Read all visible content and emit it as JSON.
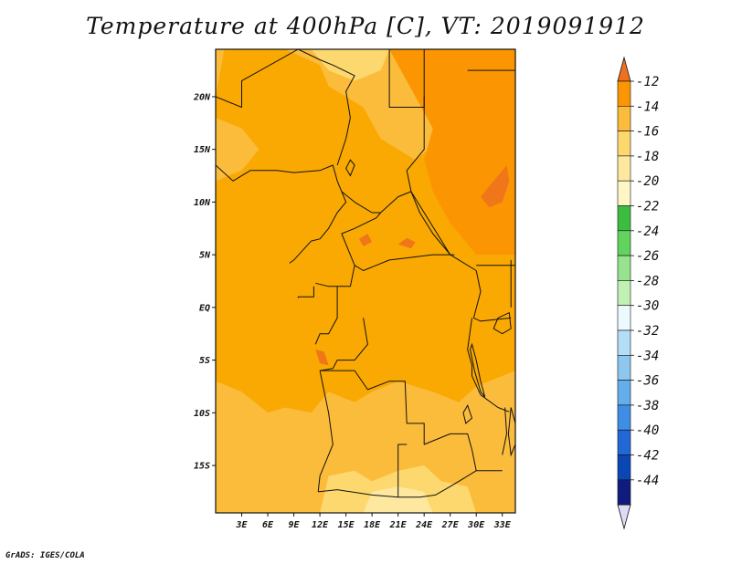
{
  "title": "Temperature at 400hPa [C], VT: 2019091912",
  "credit": "GrADS: IGES/COLA",
  "map": {
    "lon_range": [
      0,
      34.5
    ],
    "lat_range": [
      -19.5,
      24.5
    ],
    "background_color": "#f9a902",
    "lat_ticks": [
      {
        "value": 20,
        "label": "20N"
      },
      {
        "value": 15,
        "label": "15N"
      },
      {
        "value": 10,
        "label": "10N"
      },
      {
        "value": 5,
        "label": "5N"
      },
      {
        "value": 0,
        "label": "EQ"
      },
      {
        "value": -5,
        "label": "5S"
      },
      {
        "value": -10,
        "label": "10S"
      },
      {
        "value": -15,
        "label": "15S"
      }
    ],
    "lon_ticks": [
      {
        "value": 3,
        "label": "3E"
      },
      {
        "value": 6,
        "label": "6E"
      },
      {
        "value": 9,
        "label": "9E"
      },
      {
        "value": 12,
        "label": "12E"
      },
      {
        "value": 15,
        "label": "15E"
      },
      {
        "value": 18,
        "label": "18E"
      },
      {
        "value": 21,
        "label": "21E"
      },
      {
        "value": 24,
        "label": "24E"
      },
      {
        "value": 27,
        "label": "27E"
      },
      {
        "value": 30,
        "label": "30E"
      },
      {
        "value": 33,
        "label": "33E"
      }
    ],
    "regions": [
      {
        "name": "band-16-north",
        "color": "#fbbc3c",
        "points": [
          [
            1,
            24.5
          ],
          [
            8,
            24.5
          ],
          [
            12,
            23
          ],
          [
            13,
            21
          ],
          [
            17,
            19
          ],
          [
            19,
            16
          ],
          [
            23,
            14
          ],
          [
            26,
            16
          ],
          [
            28,
            20
          ],
          [
            29,
            22
          ],
          [
            29,
            24.5
          ],
          [
            0,
            24.5
          ],
          [
            0,
            20
          ]
        ]
      },
      {
        "name": "band-16-northwest",
        "color": "#fbbc3c",
        "points": [
          [
            0,
            18
          ],
          [
            3,
            17
          ],
          [
            5,
            15
          ],
          [
            3,
            13
          ],
          [
            0,
            12
          ]
        ]
      },
      {
        "name": "band-18-north",
        "color": "#fdd86e",
        "points": [
          [
            11,
            24.5
          ],
          [
            20,
            24.5
          ],
          [
            19,
            22.5
          ],
          [
            16,
            21.5
          ],
          [
            13,
            22.5
          ]
        ]
      },
      {
        "name": "band-14-northeast",
        "color": "#fb9602",
        "points": [
          [
            20,
            24.5
          ],
          [
            34.5,
            24.5
          ],
          [
            34.5,
            5
          ],
          [
            30,
            5
          ],
          [
            27,
            8
          ],
          [
            25,
            11
          ],
          [
            24,
            14
          ],
          [
            25,
            17
          ],
          [
            23,
            20
          ]
        ]
      },
      {
        "name": "band-16-south",
        "color": "#fbbc3c",
        "points": [
          [
            0,
            -7
          ],
          [
            3,
            -8
          ],
          [
            6,
            -10
          ],
          [
            8,
            -9.5
          ],
          [
            11,
            -10
          ],
          [
            13,
            -8
          ],
          [
            16,
            -9
          ],
          [
            18,
            -8
          ],
          [
            21,
            -7
          ],
          [
            25,
            -8
          ],
          [
            28,
            -9
          ],
          [
            30,
            -7.5
          ],
          [
            34.5,
            -6
          ],
          [
            34.5,
            -19.5
          ],
          [
            0,
            -19.5
          ]
        ]
      },
      {
        "name": "band-18-south",
        "color": "#fdd86e",
        "points": [
          [
            12,
            -19.5
          ],
          [
            13,
            -16
          ],
          [
            16,
            -15.5
          ],
          [
            18,
            -16.5
          ],
          [
            21,
            -15.5
          ],
          [
            24,
            -15
          ],
          [
            26,
            -16.5
          ],
          [
            29,
            -17
          ],
          [
            30,
            -19.5
          ]
        ]
      },
      {
        "name": "band-20-south",
        "color": "#fee8a0",
        "points": [
          [
            17,
            -19.5
          ],
          [
            18,
            -17.5
          ],
          [
            21,
            -17
          ],
          [
            24,
            -17.5
          ],
          [
            25,
            -19.5
          ]
        ]
      },
      {
        "name": "band-12-east",
        "color": "#f0761a",
        "points": [
          [
            30.5,
            10.5
          ],
          [
            32,
            12
          ],
          [
            33.5,
            13.5
          ],
          [
            33.8,
            12
          ],
          [
            33,
            10
          ],
          [
            31.5,
            9.5
          ]
        ]
      },
      {
        "name": "band-12-center",
        "color": "#f0761a",
        "points": [
          [
            16.5,
            6.5
          ],
          [
            17.5,
            7
          ],
          [
            18,
            6.2
          ],
          [
            17,
            5.8
          ]
        ]
      },
      {
        "name": "band-12-central",
        "color": "#f0761a",
        "points": [
          [
            21,
            6
          ],
          [
            22,
            6.6
          ],
          [
            23,
            6.2
          ],
          [
            22.5,
            5.6
          ]
        ]
      },
      {
        "name": "band-12-gabon",
        "color": "#f0761a",
        "points": [
          [
            11.5,
            -4
          ],
          [
            12.5,
            -4.2
          ],
          [
            13,
            -5.5
          ],
          [
            12,
            -5.3
          ]
        ]
      }
    ],
    "borders": [
      [
        [
          0,
          20
        ],
        [
          3,
          19
        ],
        [
          3,
          21.5
        ],
        [
          9.5,
          24.5
        ]
      ],
      [
        [
          9.5,
          24.5
        ],
        [
          12,
          23.5
        ],
        [
          13.5,
          23
        ],
        [
          16,
          22
        ],
        [
          15,
          20.5
        ],
        [
          15.5,
          18
        ],
        [
          15,
          16
        ],
        [
          14,
          13.5
        ]
      ],
      [
        [
          20,
          24.5
        ],
        [
          20,
          21
        ],
        [
          20,
          19
        ],
        [
          24,
          19
        ],
        [
          24,
          24.5
        ]
      ],
      [
        [
          24,
          20
        ],
        [
          24,
          15
        ],
        [
          22,
          13
        ],
        [
          22.5,
          11
        ],
        [
          24,
          9
        ],
        [
          27,
          5
        ],
        [
          30,
          3.5
        ]
      ],
      [
        [
          0,
          13.5
        ],
        [
          2,
          12
        ],
        [
          4,
          13
        ],
        [
          7,
          13
        ],
        [
          9,
          12.8
        ],
        [
          12,
          13
        ],
        [
          13.5,
          13.5
        ],
        [
          14,
          12
        ],
        [
          14.5,
          11
        ],
        [
          15,
          10
        ],
        [
          14,
          9
        ],
        [
          13,
          7.5
        ],
        [
          12,
          6.5
        ],
        [
          11,
          6.3
        ],
        [
          9,
          4.5
        ],
        [
          8.5,
          4.2
        ]
      ],
      [
        [
          14.5,
          11
        ],
        [
          16,
          10
        ],
        [
          18,
          9
        ],
        [
          19,
          9
        ],
        [
          21,
          10.5
        ],
        [
          22.5,
          11
        ],
        [
          23.5,
          9
        ],
        [
          25,
          7
        ],
        [
          27,
          5
        ]
      ],
      [
        [
          14.5,
          7
        ],
        [
          16,
          7.5
        ],
        [
          18.5,
          8.5
        ],
        [
          19,
          9
        ]
      ],
      [
        [
          14.5,
          7
        ],
        [
          15,
          6
        ],
        [
          16,
          4
        ],
        [
          17,
          3.5
        ],
        [
          18.5,
          4
        ],
        [
          20,
          4.5
        ],
        [
          22,
          4.7
        ],
        [
          25,
          5
        ],
        [
          27.5,
          5
        ]
      ],
      [
        [
          16,
          4
        ],
        [
          15.5,
          2
        ],
        [
          14,
          2
        ],
        [
          13,
          2
        ],
        [
          11.5,
          2.3
        ]
      ],
      [
        [
          11.3,
          2
        ],
        [
          11.3,
          1
        ],
        [
          9.5,
          1
        ],
        [
          9.5,
          0.9
        ]
      ],
      [
        [
          14,
          2
        ],
        [
          14,
          -1
        ],
        [
          13,
          -2.5
        ],
        [
          12,
          -2.5
        ],
        [
          11.5,
          -3.5
        ]
      ],
      [
        [
          17,
          -1
        ],
        [
          17.5,
          -3.5
        ],
        [
          16,
          -5
        ],
        [
          14,
          -5
        ],
        [
          13.5,
          -5.8
        ],
        [
          12,
          -6
        ]
      ],
      [
        [
          12,
          -6
        ],
        [
          16,
          -6
        ],
        [
          17.5,
          -7.8
        ],
        [
          20,
          -7
        ],
        [
          21.8,
          -7
        ],
        [
          22,
          -11
        ],
        [
          24,
          -11
        ],
        [
          24,
          -13
        ],
        [
          27,
          -12
        ],
        [
          29,
          -12
        ],
        [
          29.5,
          -13.5
        ],
        [
          30,
          -15.5
        ],
        [
          33,
          -15.5
        ]
      ],
      [
        [
          12,
          -6
        ],
        [
          12.5,
          -8
        ],
        [
          13,
          -10
        ],
        [
          13.5,
          -13
        ],
        [
          12,
          -16
        ],
        [
          11.8,
          -17.5
        ]
      ],
      [
        [
          11.8,
          -17.5
        ],
        [
          14,
          -17.3
        ],
        [
          18,
          -17.8
        ],
        [
          21,
          -18
        ],
        [
          23.5,
          -18
        ],
        [
          25.3,
          -17.8
        ]
      ],
      [
        [
          22,
          -13
        ],
        [
          21,
          -13
        ],
        [
          21,
          -18
        ]
      ],
      [
        [
          25.3,
          -17.8
        ],
        [
          27,
          -17
        ],
        [
          29,
          -16
        ],
        [
          30,
          -15.5
        ]
      ],
      [
        [
          29.5,
          -1
        ],
        [
          29,
          -4
        ],
        [
          29.5,
          -5.5
        ],
        [
          29.5,
          -6.5
        ],
        [
          30.5,
          -8.3
        ],
        [
          32.5,
          -9.5
        ],
        [
          33.8,
          -9.9
        ]
      ],
      [
        [
          33,
          -14
        ],
        [
          33.5,
          -12
        ],
        [
          33.3,
          -9.5
        ]
      ],
      [
        [
          30,
          3.5
        ],
        [
          30.5,
          1.5
        ],
        [
          29.7,
          -1
        ],
        [
          30.5,
          -1.3
        ],
        [
          34,
          -1
        ]
      ],
      [
        [
          30,
          4
        ],
        [
          34.5,
          4
        ]
      ],
      [
        [
          34,
          4.5
        ],
        [
          34,
          0
        ]
      ],
      [
        [
          29,
          22.5
        ],
        [
          34.5,
          22.5
        ]
      ]
    ],
    "lakes": [
      [
        [
          29.5,
          -3.5
        ],
        [
          30,
          -5
        ],
        [
          30.5,
          -7
        ],
        [
          31,
          -8.5
        ],
        [
          30.5,
          -8
        ],
        [
          29.8,
          -6
        ],
        [
          29.3,
          -4
        ]
      ],
      [
        [
          32.5,
          -1
        ],
        [
          33.8,
          -0.5
        ],
        [
          34,
          -2
        ],
        [
          33,
          -2.5
        ],
        [
          32,
          -2
        ]
      ],
      [
        [
          34,
          -9.5
        ],
        [
          34.5,
          -11
        ],
        [
          34.5,
          -13
        ],
        [
          34,
          -14
        ],
        [
          33.7,
          -12
        ]
      ],
      [
        [
          28.5,
          -10
        ],
        [
          29,
          -9.3
        ],
        [
          29.5,
          -10.5
        ],
        [
          28.8,
          -11
        ]
      ],
      [
        [
          15.5,
          12.5
        ],
        [
          16,
          13.5
        ],
        [
          15.5,
          14
        ],
        [
          15,
          13.2
        ]
      ]
    ]
  },
  "colorbar": {
    "labels": [
      "-12",
      "-14",
      "-16",
      "-18",
      "-20",
      "-22",
      "-24",
      "-26",
      "-28",
      "-30",
      "-32",
      "-34",
      "-36",
      "-38",
      "-40",
      "-42",
      "-44"
    ],
    "colors": [
      "#f07020",
      "#fb9602",
      "#fbbc3c",
      "#fdd86e",
      "#fee8a0",
      "#fef6c7",
      "#3cbd40",
      "#62d35e",
      "#96e38d",
      "#c1f0b5",
      "#ecfaff",
      "#b4ddf6",
      "#8dc7f0",
      "#64aeeb",
      "#3f8ee6",
      "#2167d5",
      "#0a46b4",
      "#0f1c7d",
      "#dcdcf5"
    ]
  }
}
